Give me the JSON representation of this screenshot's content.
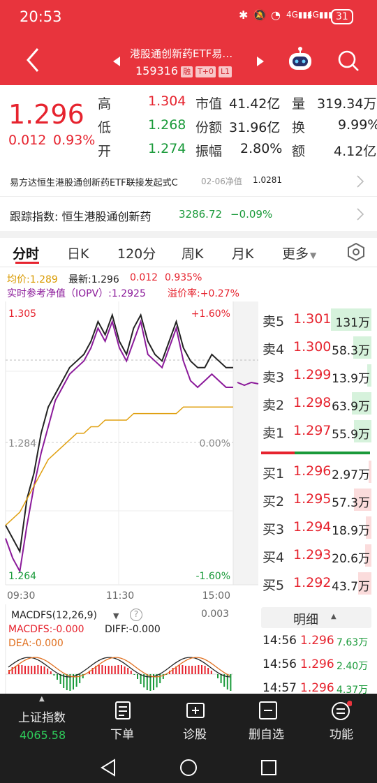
{
  "status": {
    "time": "20:53",
    "battery": "31"
  },
  "header": {
    "title": "港股通创新药ETF易…",
    "code": "159316",
    "tags": [
      "融",
      "T+0",
      "L1"
    ],
    "back_icon": "chevron-left-icon",
    "prev_icon": "triangle-left-icon",
    "next_icon": "triangle-right-icon",
    "robot_icon": "robot-icon",
    "search_icon": "search-icon"
  },
  "quote": {
    "price": "1.296",
    "change": "0.012",
    "change_pct": "0.93%",
    "high_label": "高",
    "high": "1.304",
    "low_label": "低",
    "low": "1.268",
    "open_label": "开",
    "open": "1.274",
    "mktcap_label": "市值",
    "mktcap": "41.42亿",
    "shares_label": "份额",
    "shares": "31.96亿",
    "amp_label": "振幅",
    "amp": "2.80%",
    "vol_label": "量",
    "vol": "319.34万",
    "turnover_label": "换",
    "turnover": "9.99%",
    "amount_label": "额",
    "amount": "4.12亿"
  },
  "fund": {
    "name": "易方达恒生港股通创新药ETF联接发起式C",
    "date_label": "02-06净值",
    "nav": "1.0281"
  },
  "index": {
    "label": "跟踪指数: 恒生港股通创新药",
    "value": "3286.72",
    "change": "−0.09%"
  },
  "tabs": [
    "分时",
    "日K",
    "120分",
    "周K",
    "月K",
    "更多"
  ],
  "chart_info": {
    "avg": "均价:1.289",
    "latest": "最新:1.296",
    "chg": "0.012",
    "pct": "0.935%",
    "iopv": "实时参考净值（IOPV）:1.2925",
    "premium": "溢价率:+0.27%"
  },
  "chart_data": {
    "type": "line",
    "ylim": [
      1.264,
      1.305
    ],
    "base": 1.284,
    "y_labels": {
      "top": "1.305",
      "mid": "1.284",
      "bottom": "1.264"
    },
    "pct_labels": {
      "top": "+1.60%",
      "mid": "0.00%",
      "bottom": "-1.60%"
    },
    "x_labels": [
      "09:30",
      "11:30",
      "15:00"
    ],
    "series": [
      {
        "values": [
          1.272,
          1.27,
          1.268,
          1.276,
          1.28,
          1.286,
          1.29,
          1.292,
          1.294,
          1.296,
          1.297,
          1.298,
          1.3,
          1.303,
          1.301,
          1.304,
          1.3,
          1.298,
          1.302,
          1.304,
          1.3,
          1.298,
          1.297,
          1.3,
          1.303,
          1.299,
          1.297,
          1.296,
          1.296,
          1.298,
          1.297,
          1.296,
          1.296
        ]
      },
      {
        "values": [
          1.27,
          1.267,
          1.265,
          1.272,
          1.278,
          1.283,
          1.287,
          1.291,
          1.293,
          1.295,
          1.296,
          1.297,
          1.299,
          1.302,
          1.3,
          1.303,
          1.299,
          1.297,
          1.3,
          1.303,
          1.298,
          1.297,
          1.296,
          1.299,
          1.302,
          1.297,
          1.294,
          1.293,
          1.294,
          1.295,
          1.294,
          1.293,
          1.293
        ]
      },
      {
        "values": [
          1.272,
          1.273,
          1.274,
          1.276,
          1.278,
          1.28,
          1.282,
          1.283,
          1.284,
          1.285,
          1.286,
          1.286,
          1.287,
          1.287,
          1.288,
          1.288,
          1.288,
          1.288,
          1.289,
          1.289,
          1.289,
          1.289,
          1.289,
          1.289,
          1.289,
          1.29,
          1.29,
          1.29,
          1.29,
          1.29,
          1.29,
          1.29,
          1.29
        ]
      }
    ]
  },
  "orderbook": {
    "asks": [
      {
        "label": "卖5",
        "price": "1.301",
        "vol": "131万"
      },
      {
        "label": "卖4",
        "price": "1.300",
        "vol": "58.3万"
      },
      {
        "label": "卖3",
        "price": "1.299",
        "vol": "13.9万"
      },
      {
        "label": "卖2",
        "price": "1.298",
        "vol": "63.9万"
      },
      {
        "label": "卖1",
        "price": "1.297",
        "vol": "55.9万"
      }
    ],
    "bids": [
      {
        "label": "买1",
        "price": "1.296",
        "vol": "2.97万"
      },
      {
        "label": "买2",
        "price": "1.295",
        "vol": "57.3万"
      },
      {
        "label": "买3",
        "price": "1.294",
        "vol": "18.9万"
      },
      {
        "label": "买4",
        "price": "1.293",
        "vol": "20.6万"
      },
      {
        "label": "买5",
        "price": "1.292",
        "vol": "43.7万"
      }
    ]
  },
  "macd": {
    "title": "MACDFS(12,26,9)",
    "top_value": "0.003",
    "macdfs": "MACDFS:-0.000",
    "diff": "DIFF:-0.000",
    "dea": "DEA:-0.000"
  },
  "ticks": {
    "header": "明细",
    "rows": [
      {
        "time": "14:56",
        "price": "1.296",
        "vol": "7.63万"
      },
      {
        "time": "14:56",
        "price": "1.296",
        "vol": "2.40万"
      },
      {
        "time": "14:57",
        "price": "1.296",
        "vol": "4.37万"
      }
    ]
  },
  "nav": {
    "index_label": "上证指数",
    "index_value": "4065.58",
    "items": [
      {
        "label": "下单",
        "icon": "document-icon"
      },
      {
        "label": "诊股",
        "icon": "plus-box-icon"
      },
      {
        "label": "删自选",
        "icon": "minus-box-icon"
      },
      {
        "label": "功能",
        "icon": "menu-circle-icon"
      }
    ]
  }
}
